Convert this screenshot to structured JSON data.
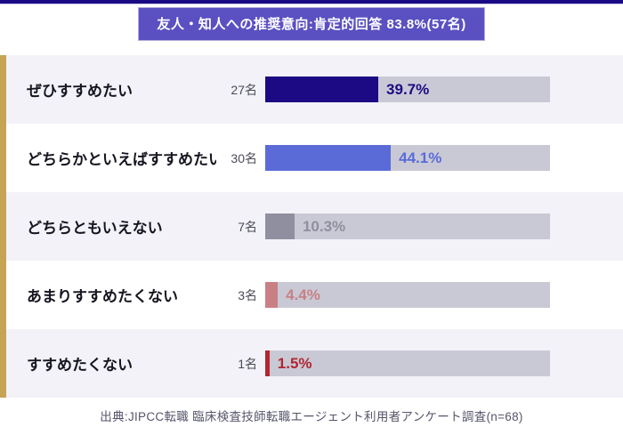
{
  "header": {
    "title": "友人・知人への推奨意向:肯定的回答 83.8%(57名)"
  },
  "chart_data": {
    "type": "bar",
    "orientation": "horizontal",
    "title": "友人・知人への推奨意向:肯定的回答 83.8%(57名)",
    "categories": [
      "ぜひすすめたい",
      "どちらかといえばすすめたい",
      "どちらともいえない",
      "あまりすすめたくない",
      "すすめたくない"
    ],
    "counts": [
      "27名",
      "30名",
      "7名",
      "3名",
      "1名"
    ],
    "values": [
      39.7,
      44.1,
      10.3,
      4.4,
      1.5
    ],
    "value_labels": [
      "39.7%",
      "44.1%",
      "10.3%",
      "4.4%",
      "1.5%"
    ],
    "bar_colors": [
      "#1b0a84",
      "#5a6bd8",
      "#8f8f9f",
      "#c98085",
      "#b02730"
    ],
    "xlim": [
      0,
      100
    ],
    "grid": false,
    "legend": "none",
    "positive_pct": 83.8,
    "positive_count": 57,
    "n": 68
  },
  "footer": {
    "source": "出典:JIPCC転職 臨床検査技師転職エージェント利用者アンケート調査(n=68)"
  },
  "colors": {
    "top_border": "#1b0a84",
    "banner_bg": "#5a50c2",
    "accent_stripe": "#c7a356",
    "track": "#c9c9d6",
    "row_alt_bg": "#f2f2f8"
  }
}
